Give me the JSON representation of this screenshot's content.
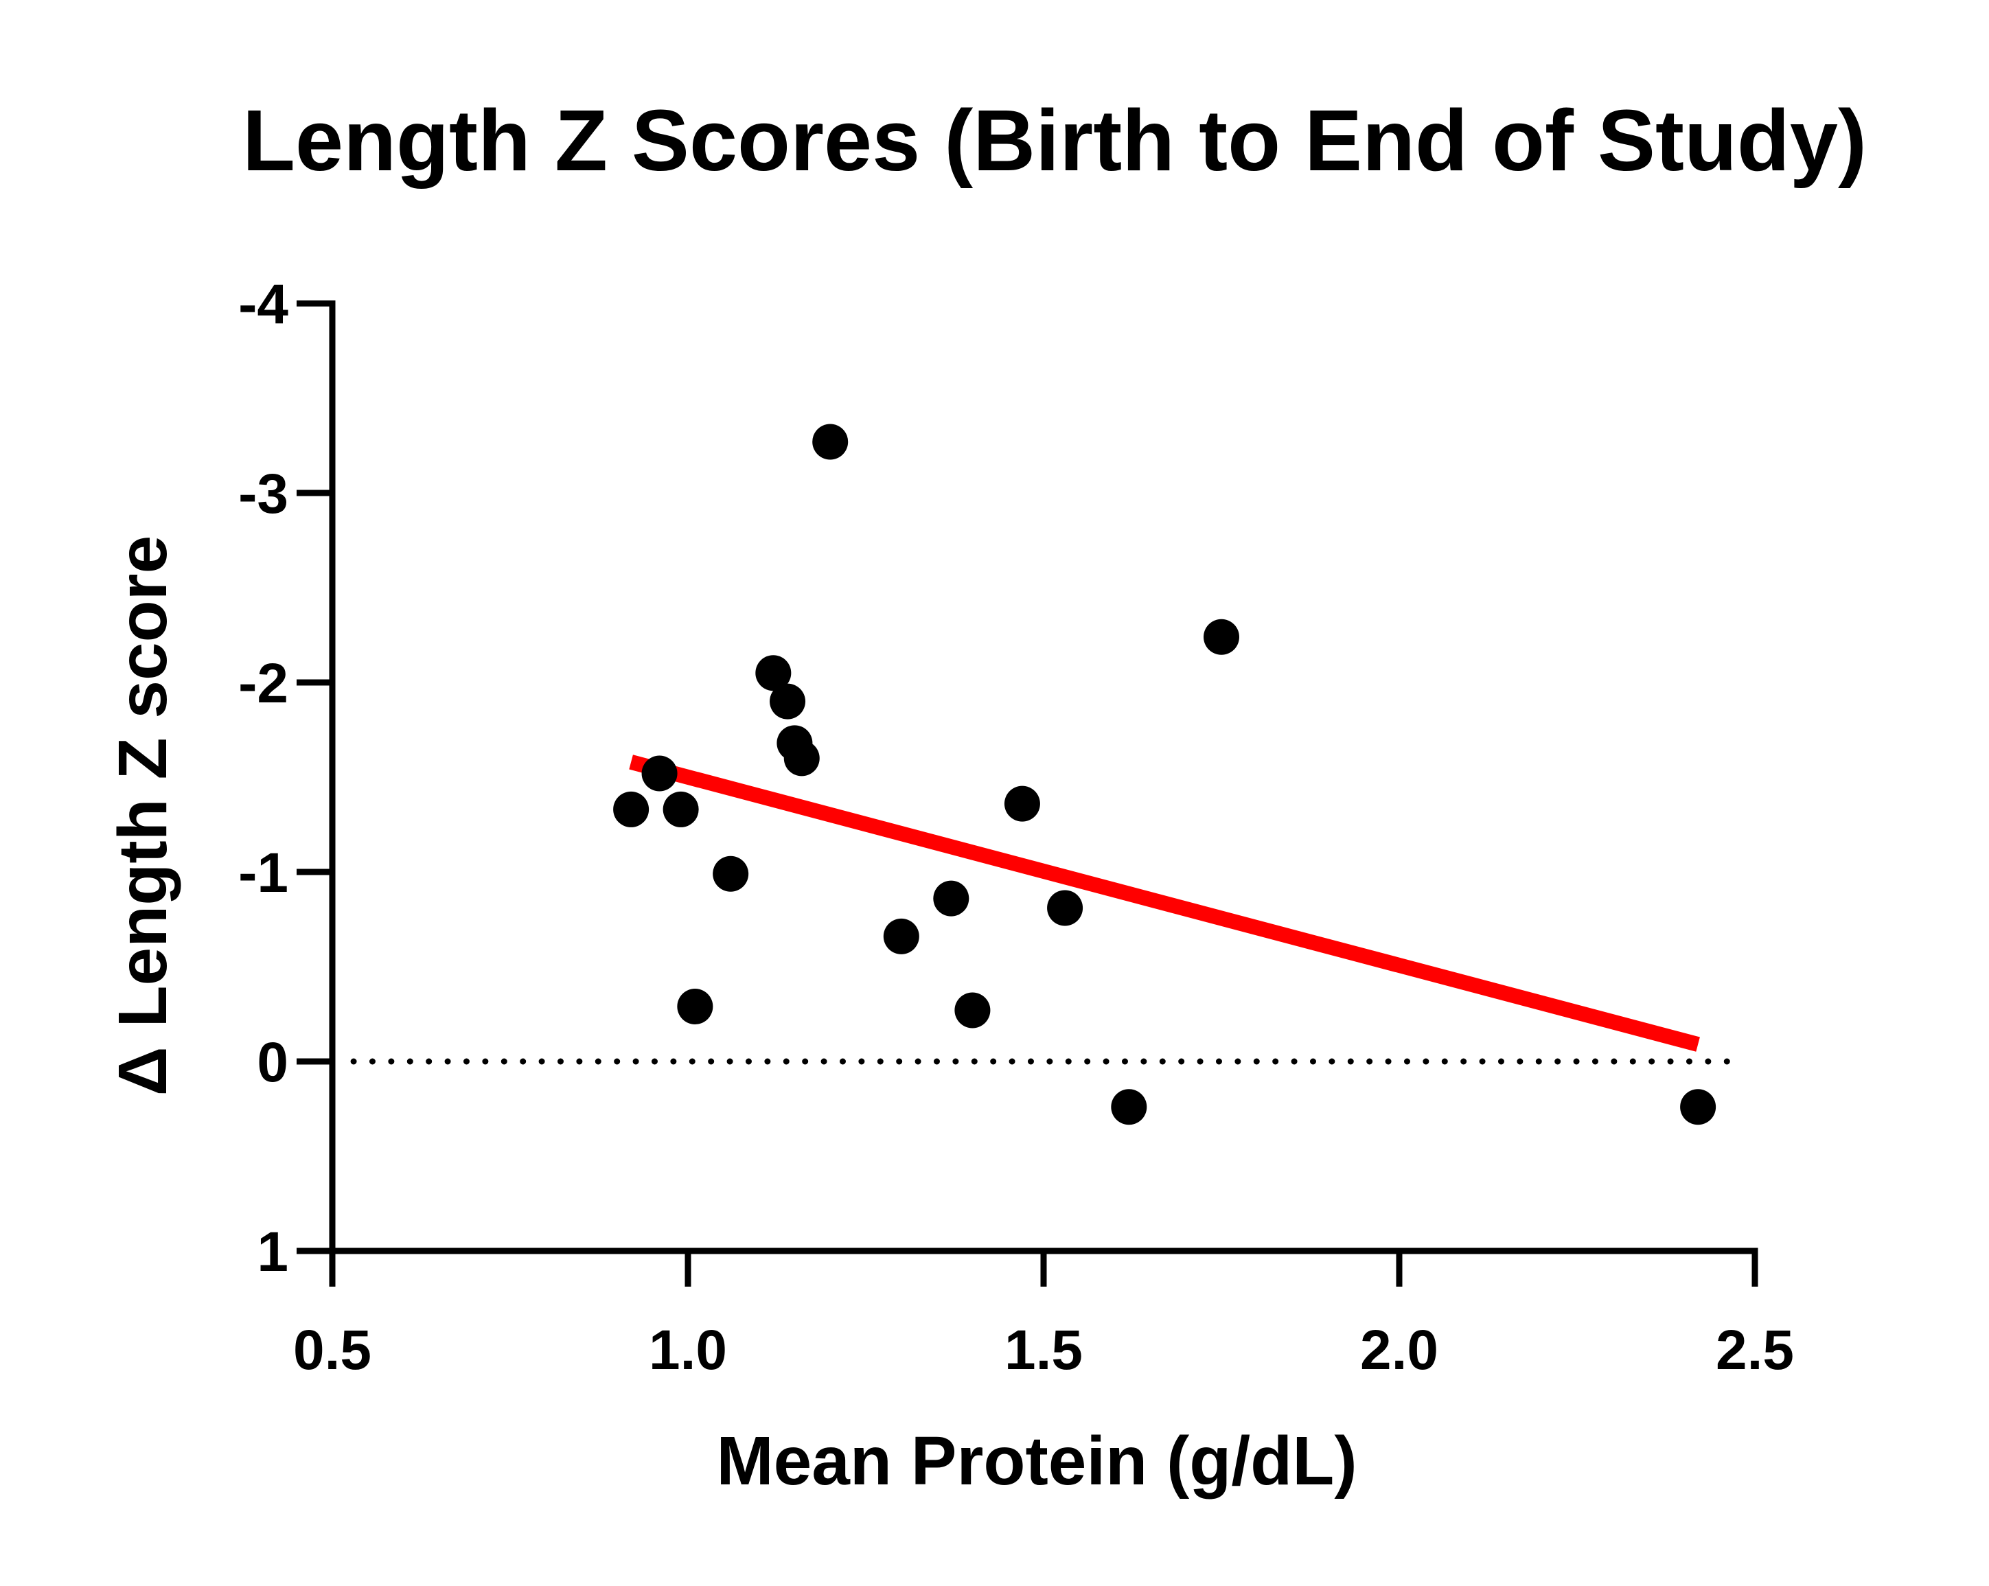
{
  "chart_data": {
    "type": "scatter",
    "title": "Length Z Scores (Birth to End of Study)",
    "xlabel": "Mean Protein (g/dL)",
    "ylabel": "Δ Length Z score",
    "xlim": [
      0.5,
      2.5
    ],
    "ylim": [
      1,
      -4
    ],
    "y_axis_inverted": true,
    "x_ticks": [
      "0.5",
      "1.0",
      "1.5",
      "2.0",
      "2.5"
    ],
    "y_ticks": [
      "-4",
      "-3",
      "-2",
      "-1",
      "0",
      "1"
    ],
    "x_tick_values": [
      0.5,
      1.0,
      1.5,
      2.0,
      2.5
    ],
    "y_tick_values": [
      -4,
      -3,
      -2,
      -1,
      0,
      1
    ],
    "grid": false,
    "legend": "none",
    "points": [
      {
        "x": 0.92,
        "y": -1.33
      },
      {
        "x": 0.96,
        "y": -1.52
      },
      {
        "x": 0.99,
        "y": -1.33
      },
      {
        "x": 1.01,
        "y": -0.29
      },
      {
        "x": 1.06,
        "y": -0.99
      },
      {
        "x": 1.12,
        "y": -2.05
      },
      {
        "x": 1.14,
        "y": -1.9
      },
      {
        "x": 1.15,
        "y": -1.68
      },
      {
        "x": 1.16,
        "y": -1.6
      },
      {
        "x": 1.2,
        "y": -3.27
      },
      {
        "x": 1.3,
        "y": -0.66
      },
      {
        "x": 1.37,
        "y": -0.86
      },
      {
        "x": 1.4,
        "y": -0.27
      },
      {
        "x": 1.47,
        "y": -1.36
      },
      {
        "x": 1.53,
        "y": -0.81
      },
      {
        "x": 1.62,
        "y": 0.24
      },
      {
        "x": 1.75,
        "y": -2.24
      },
      {
        "x": 2.42,
        "y": 0.24
      }
    ],
    "fit_line": {
      "x": [
        0.92,
        2.42
      ],
      "y": [
        -1.58,
        -0.09
      ],
      "color": "#ff0000"
    },
    "reference_line": {
      "y": 0,
      "style": "dotted",
      "x_range": [
        0.53,
        2.48
      ]
    },
    "point_color": "#000000"
  }
}
